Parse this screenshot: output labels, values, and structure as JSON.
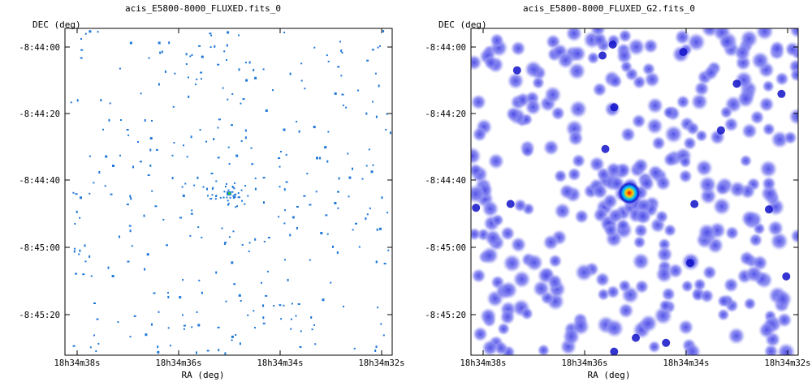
{
  "chart_data": [
    {
      "type": "heatmap",
      "title": "acis_E5800-8000_FLUXED.fits_0",
      "xlabel": "RA (deg)",
      "ylabel": "DEC (deg)",
      "xticks": [
        "18h34m38s",
        "18h34m36s",
        "18h34m34s",
        "18h34m32s"
      ],
      "yticks": [
        "-8:44:00",
        "-8:44:20",
        "-8:44:40",
        "-8:45:00",
        "-8:45:20"
      ],
      "image": "sparse photon events (blue pixels) with a bright compact source near center",
      "colormap": [
        "#ffffff",
        "#1f77d8",
        "#2ecc40",
        "#ffdd00",
        "#ff0000"
      ],
      "seed": 11
    },
    {
      "type": "heatmap",
      "title": "acis_E5800-8000_FLUXED_G2.fits_0",
      "xlabel": "RA (deg)",
      "ylabel": "DEC (deg)",
      "xticks": [
        "18h34m38s",
        "18h34m36s",
        "18h34m34s",
        "18h34m32s"
      ],
      "yticks": [
        "-8:44:00",
        "-8:44:20",
        "-8:44:40",
        "-8:45:00",
        "-8:45:20"
      ],
      "image": "gaussian-smoothed events (blue blobs) with a bright red source near center",
      "colormap": [
        "#ffffff",
        "#8a8af0",
        "#2222dd",
        "#00c8ff",
        "#ffff00",
        "#ff0000"
      ],
      "seed": 23
    }
  ]
}
